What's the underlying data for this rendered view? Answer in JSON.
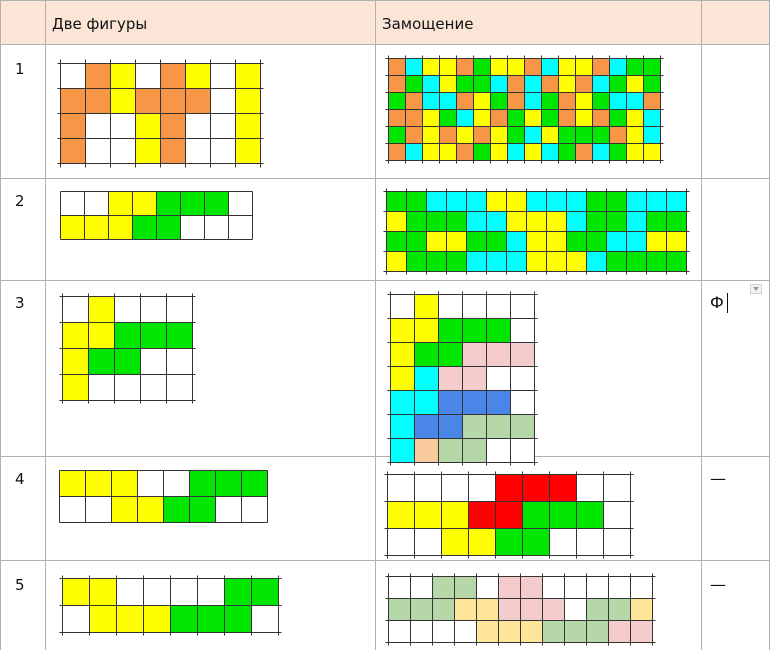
{
  "colors": {
    "W": "#ffffff",
    "Y": "#ffff00",
    "O": "#f79646",
    "G": "#00e600",
    "C": "#00ffff",
    "P": "#f4cccc",
    "B": "#4a86e8",
    "S": "#b6d7a8",
    "T": "#f9cb9c",
    "R": "#ff0000",
    "L": "#ffe599",
    "header_bg": "#fbe5d6"
  },
  "header": {
    "col_a": "",
    "col_b": "Две фигуры",
    "col_c": "Замощение",
    "col_d": ""
  },
  "rows": [
    {
      "number": "1",
      "remark": "",
      "figures": [
        "WOYWOYWY",
        "OOYOOOWY",
        "OWWYOWWY",
        "OWWYOWWY"
      ],
      "tiling": [
        "OCYYOGYYOCYYOCGG",
        "OGCYGGCOCOYOCGYG",
        "GOCCOYGOCGOYGCCO",
        "OOYGCYOGYGOYOGYC",
        "GOYOYOYGCYGGGOYC",
        "OCYYOGYCYCGOCGYY"
      ]
    },
    {
      "number": "2",
      "remark": "",
      "figures": [
        "WWYYGGGW",
        "YYYGGWWW"
      ],
      "tiling": [
        "GGCCCYYCCCGGCCC",
        "YGGGCCYYYCGGCGG",
        "GGYYGGCYYGGCCYY",
        "YGGGCCCYYYCGGGG"
      ]
    },
    {
      "number": "3",
      "remark": "Ф",
      "figures": [
        "WYWWW",
        "YYGGG",
        "YGGWW",
        "YWWWW"
      ],
      "tiling": [
        "WYWWWW",
        "YYGGGW",
        "YGGPPP",
        "YCPPWW",
        "CCBBBW",
        "CBBSSS",
        "CTSSWW"
      ]
    },
    {
      "number": "4",
      "remark": "—",
      "figures": [
        "YYYWWGGG",
        "WWYYGGWW"
      ],
      "tiling": [
        "WWWWRRRWW",
        "YYYRRGGGW",
        "WWYYGGWWW"
      ]
    },
    {
      "number": "5",
      "remark": "—",
      "figures": [
        "YYWWWWGG",
        "WYYYGGGW"
      ],
      "tiling": [
        "WWSSWPPWWWWW",
        "SSSLLPPPWSSL",
        "WWWWLLLSSSPP"
      ]
    }
  ]
}
